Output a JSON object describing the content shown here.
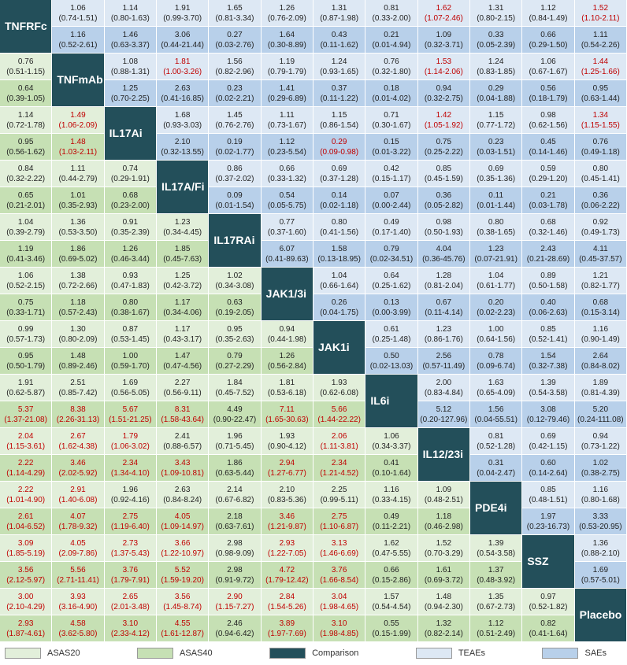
{
  "significant_color": "#c00000",
  "legend": [
    {
      "label": "ASAS20",
      "color": "#e2efda"
    },
    {
      "label": "ASAS40",
      "color": "#c6e0b4"
    },
    {
      "label": "Comparison",
      "color": "#234f5a"
    },
    {
      "label": "TEAEs",
      "color": "#dde8f4"
    },
    {
      "label": "SAEs",
      "color": "#b8d0ea"
    }
  ],
  "rows": [
    {
      "name": "TNFRFc",
      "top": [
        "1.06\n(0.74-1.51)",
        "1.14\n(0.80-1.63)",
        "1.91\n(0.99-3.70)",
        "1.65\n(0.81-3.34)",
        "1.26\n(0.76-2.09)",
        "1.31\n(0.87-1.98)",
        "0.81\n(0.33-2.00)",
        "1.62\n(1.07-2.46)",
        "1.31\n(0.80-2.15)",
        "1.12\n(0.84-1.49)",
        "1.52\n(1.10-2.11)"
      ],
      "top_red": [
        7,
        10
      ],
      "bottom": [
        "1.16\n(0.52-2.61)",
        "1.46\n(0.63-3.37)",
        "3.06\n(0.44-21.44)",
        "0.27\n(0.03-2.76)",
        "1.64\n(0.30-8.89)",
        "0.43\n(0.11-1.62)",
        "0.21\n(0.01-4.94)",
        "1.09\n(0.32-3.71)",
        "0.33\n(0.05-2.39)",
        "0.66\n(0.29-1.50)",
        "1.11\n(0.54-2.26)"
      ],
      "bottom_red": []
    },
    {
      "name": "TNFmAb",
      "top": [
        "0.76\n(0.51-1.15)",
        "1.08\n(0.88-1.31)",
        "1.81\n(1.00-3.26)",
        "1.56\n(0.82-2.96)",
        "1.19\n(0.79-1.79)",
        "1.24\n(0.93-1.65)",
        "0.76\n(0.32-1.80)",
        "1.53\n(1.14-2.06)",
        "1.24\n(0.83-1.85)",
        "1.06\n(0.67-1.67)",
        "1.44\n(1.25-1.66)"
      ],
      "top_red": [
        2,
        7,
        10
      ],
      "bottom": [
        "0.64\n(0.39-1.05)",
        "1.25\n(0.70-2.25)",
        "2.63\n(0.41-16.85)",
        "0.23\n(0.02-2.21)",
        "1.41\n(0.29-6.89)",
        "0.37\n(0.11-1.22)",
        "0.18\n(0.01-4.02)",
        "0.94\n(0.32-2.75)",
        "0.29\n(0.04-1.88)",
        "0.56\n(0.18-1.79)",
        "0.95\n(0.63-1.44)"
      ],
      "bottom_red": []
    },
    {
      "name": "IL17Ai",
      "top": [
        "1.14\n(0.72-1.78)",
        "1.49\n(1.06-2.09)",
        "1.68\n(0.93-3.03)",
        "1.45\n(0.76-2.76)",
        "1.11\n(0.73-1.67)",
        "1.15\n(0.86-1.54)",
        "0.71\n(0.30-1.67)",
        "1.42\n(1.05-1.92)",
        "1.15\n(0.77-1.72)",
        "0.98\n(0.62-1.56)",
        "1.34\n(1.15-1.55)"
      ],
      "top_red": [
        1,
        7,
        10
      ],
      "bottom": [
        "0.95\n(0.56-1.62)",
        "1.48\n(1.03-2.11)",
        "2.10\n(0.32-13.55)",
        "0.19\n(0.02-1.77)",
        "1.12\n(0.23-5.54)",
        "0.29\n(0.09-0.98)",
        "0.15\n(0.01-3.22)",
        "0.75\n(0.25-2.22)",
        "0.23\n(0.03-1.51)",
        "0.45\n(0.14-1.46)",
        "0.76\n(0.49-1.18)"
      ],
      "bottom_red": [
        1,
        5
      ]
    },
    {
      "name": "IL17A/Fi",
      "top": [
        "0.84\n(0.32-2.22)",
        "1.11\n(0.44-2.79)",
        "0.74\n(0.29-1.91)",
        "0.86\n(0.37-2.02)",
        "0.66\n(0.33-1.32)",
        "0.69\n(0.37-1.28)",
        "0.42\n(0.15-1.17)",
        "0.85\n(0.45-1.59)",
        "0.69\n(0.35-1.36)",
        "0.59\n(0.29-1.20)",
        "0.80\n(0.45-1.41)"
      ],
      "top_red": [],
      "bottom": [
        "0.65\n(0.21-2.01)",
        "1.01\n(0.35-2.93)",
        "0.68\n(0.23-2.00)",
        "0.09\n(0.01-1.54)",
        "0.54\n(0.05-5.75)",
        "0.14\n(0.02-1.18)",
        "0.07\n(0.00-2.44)",
        "0.36\n(0.05-2.82)",
        "0.11\n(0.01-1.44)",
        "0.21\n(0.03-1.78)",
        "0.36\n(0.06-2.22)"
      ],
      "bottom_red": []
    },
    {
      "name": "IL17RAi",
      "top": [
        "1.04\n(0.39-2.79)",
        "1.36\n(0.53-3.50)",
        "0.91\n(0.35-2.39)",
        "1.23\n(0.34-4.45)",
        "0.77\n(0.37-1.60)",
        "0.80\n(0.41-1.56)",
        "0.49\n(0.17-1.40)",
        "0.98\n(0.50-1.93)",
        "0.80\n(0.38-1.65)",
        "0.68\n(0.32-1.46)",
        "0.92\n(0.49-1.73)"
      ],
      "top_red": [],
      "bottom": [
        "1.19\n(0.41-3.46)",
        "1.86\n(0.69-5.02)",
        "1.26\n(0.46-3.44)",
        "1.85\n(0.45-7.63)",
        "6.07\n(0.41-89.63)",
        "1.58\n(0.13-18.95)",
        "0.79\n(0.02-34.51)",
        "4.04\n(0.36-45.76)",
        "1.23\n(0.07-21.91)",
        "2.43\n(0.21-28.69)",
        "4.11\n(0.45-37.57)"
      ],
      "bottom_red": []
    },
    {
      "name": "JAK1/3i",
      "top": [
        "1.06\n(0.52-2.15)",
        "1.38\n(0.72-2.66)",
        "0.93\n(0.47-1.83)",
        "1.25\n(0.42-3.72)",
        "1.02\n(0.34-3.08)",
        "1.04\n(0.66-1.64)",
        "0.64\n(0.25-1.62)",
        "1.28\n(0.81-2.04)",
        "1.04\n(0.61-1.77)",
        "0.89\n(0.50-1.58)",
        "1.21\n(0.82-1.77)"
      ],
      "top_red": [],
      "bottom": [
        "0.75\n(0.33-1.71)",
        "1.18\n(0.57-2.43)",
        "0.80\n(0.38-1.67)",
        "1.17\n(0.34-4.06)",
        "0.63\n(0.19-2.05)",
        "0.26\n(0.04-1.75)",
        "0.13\n(0.00-3.99)",
        "0.67\n(0.11-4.14)",
        "0.20\n(0.02-2.23)",
        "0.40\n(0.06-2.63)",
        "0.68\n(0.15-3.14)"
      ],
      "bottom_red": []
    },
    {
      "name": "JAK1i",
      "top": [
        "0.99\n(0.57-1.73)",
        "1.30\n(0.80-2.09)",
        "0.87\n(0.53-1.45)",
        "1.17\n(0.43-3.17)",
        "0.95\n(0.35-2.63)",
        "0.94\n(0.44-1.98)",
        "0.61\n(0.25-1.48)",
        "1.23\n(0.86-1.76)",
        "1.00\n(0.64-1.56)",
        "0.85\n(0.52-1.41)",
        "1.16\n(0.90-1.49)"
      ],
      "top_red": [],
      "bottom": [
        "0.95\n(0.50-1.79)",
        "1.48\n(0.89-2.46)",
        "1.00\n(0.59-1.70)",
        "1.47\n(0.47-4.56)",
        "0.79\n(0.27-2.29)",
        "1.26\n(0.56-2.84)",
        "0.50\n(0.02-13.03)",
        "2.56\n(0.57-11.49)",
        "0.78\n(0.09-6.74)",
        "1.54\n(0.32-7.38)",
        "2.64\n(0.84-8.02)"
      ],
      "bottom_red": []
    },
    {
      "name": "IL6i",
      "top": [
        "1.91\n(0.62-5.87)",
        "2.51\n(0.85-7.42)",
        "1.69\n(0.56-5.05)",
        "2.27\n(0.56-9.11)",
        "1.84\n(0.45-7.52)",
        "1.81\n(0.53-6.18)",
        "1.93\n(0.62-6.08)",
        "2.00\n(0.83-4.84)",
        "1.63\n(0.65-4.09)",
        "1.39\n(0.54-3.58)",
        "1.89\n(0.81-4.39)"
      ],
      "top_red": [],
      "bottom": [
        "5.37\n(1.37-21.08)",
        "8.38\n(2.26-31.13)",
        "5.67\n(1.51-21.25)",
        "8.31\n(1.58-43.64)",
        "4.49\n(0.90-22.47)",
        "7.11\n(1.65-30.63)",
        "5.66\n(1.44-22.22)",
        "5.12\n(0.20-127.96)",
        "1.56\n(0.04-55.51)",
        "3.08\n(0.12-79.46)",
        "5.20\n(0.24-111.08)"
      ],
      "bottom_red": [
        0,
        1,
        2,
        3,
        5,
        6
      ]
    },
    {
      "name": "IL12/23i",
      "top": [
        "2.04\n(1.15-3.61)",
        "2.67\n(1.62-4.38)",
        "1.79\n(1.06-3.02)",
        "2.41\n(0.88-6.57)",
        "1.96\n(0.71-5.45)",
        "1.93\n(0.90-4.12)",
        "2.06\n(1.11-3.81)",
        "1.06\n(0.34-3.37)",
        "0.81\n(0.52-1.28)",
        "0.69\n(0.42-1.15)",
        "0.94\n(0.73-1.22)"
      ],
      "top_red": [
        0,
        1,
        2,
        6
      ],
      "bottom": [
        "2.22\n(1.14-4.29)",
        "3.46\n(2.02-5.92)",
        "2.34\n(1.34-4.10)",
        "3.43\n(1.09-10.81)",
        "1.86\n(0.63-5.44)",
        "2.94\n(1.27-6.77)",
        "2.34\n(1.21-4.52)",
        "0.41\n(0.10-1.64)",
        "0.31\n(0.04-2.47)",
        "0.60\n(0.14-2.64)",
        "1.02\n(0.38-2.75)"
      ],
      "bottom_red": [
        0,
        1,
        2,
        3,
        5,
        6
      ]
    },
    {
      "name": "PDE4i",
      "top": [
        "2.22\n(1.01-4.90)",
        "2.91\n(1.40-6.08)",
        "1.96\n(0.92-4.16)",
        "2.63\n(0.84-8.24)",
        "2.14\n(0.67-6.82)",
        "2.10\n(0.83-5.36)",
        "2.25\n(0.99-5.11)",
        "1.16\n(0.33-4.15)",
        "1.09\n(0.48-2.51)",
        "0.85\n(0.48-1.51)",
        "1.16\n(0.80-1.68)"
      ],
      "top_red": [
        0,
        1
      ],
      "bottom": [
        "2.61\n(1.04-6.52)",
        "4.07\n(1.78-9.32)",
        "2.75\n(1.19-6.40)",
        "4.05\n(1.09-14.97)",
        "2.18\n(0.63-7.61)",
        "3.46\n(1.21-9.87)",
        "2.75\n(1.10-6.87)",
        "0.49\n(0.11-2.21)",
        "1.18\n(0.46-2.98)",
        "1.97\n(0.23-16.73)",
        "3.33\n(0.53-20.95)"
      ],
      "bottom_red": [
        0,
        1,
        2,
        3,
        5,
        6
      ]
    },
    {
      "name": "SSZ",
      "top": [
        "3.09\n(1.85-5.19)",
        "4.05\n(2.09-7.86)",
        "2.73\n(1.37-5.43)",
        "3.66\n(1.22-10.97)",
        "2.98\n(0.98-9.09)",
        "2.93\n(1.22-7.05)",
        "3.13\n(1.46-6.69)",
        "1.62\n(0.47-5.55)",
        "1.52\n(0.70-3.29)",
        "1.39\n(0.54-3.58)",
        "1.36\n(0.88-2.10)"
      ],
      "top_red": [
        0,
        1,
        2,
        3,
        5,
        6
      ],
      "bottom": [
        "3.56\n(2.12-5.97)",
        "5.56\n(2.71-11.41)",
        "3.76\n(1.79-7.91)",
        "5.52\n(1.59-19.20)",
        "2.98\n(0.91-9.72)",
        "4.72\n(1.79-12.42)",
        "3.76\n(1.66-8.54)",
        "0.66\n(0.15-2.86)",
        "1.61\n(0.69-3.72)",
        "1.37\n(0.48-3.92)",
        "1.69\n(0.57-5.01)"
      ],
      "bottom_red": [
        0,
        1,
        2,
        3,
        5,
        6
      ]
    },
    {
      "name": "Placebo",
      "top": [
        "3.00\n(2.10-4.29)",
        "3.93\n(3.16-4.90)",
        "2.65\n(2.01-3.48)",
        "3.56\n(1.45-8.74)",
        "2.90\n(1.15-7.27)",
        "2.84\n(1.54-5.26)",
        "3.04\n(1.98-4.65)",
        "1.57\n(0.54-4.54)",
        "1.48\n(0.94-2.30)",
        "1.35\n(0.67-2.73)",
        "0.97\n(0.52-1.82)"
      ],
      "top_red": [
        0,
        1,
        2,
        3,
        4,
        5,
        6
      ],
      "bottom": [
        "2.93\n(1.87-4.61)",
        "4.58\n(3.62-5.80)",
        "3.10\n(2.33-4.12)",
        "4.55\n(1.61-12.87)",
        "2.46\n(0.94-6.42)",
        "3.89\n(1.97-7.69)",
        "3.10\n(1.98-4.85)",
        "0.55\n(0.15-1.99)",
        "1.32\n(0.82-2.14)",
        "1.12\n(0.51-2.49)",
        "0.82\n(0.41-1.64)"
      ],
      "bottom_red": [
        0,
        1,
        2,
        3,
        5,
        6
      ]
    }
  ]
}
